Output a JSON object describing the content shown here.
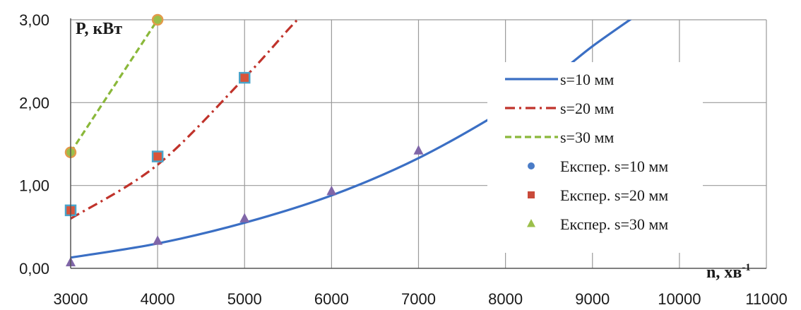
{
  "chart_data": {
    "type": "line",
    "xlabel": "n, хв",
    "xlabel_sup": "-1",
    "ylabel": "P, кВт",
    "xlim": [
      3000,
      11000
    ],
    "ylim": [
      0,
      3
    ],
    "x_ticks": [
      "3000",
      "4000",
      "5000",
      "6000",
      "7000",
      "8000",
      "9000",
      "10000",
      "11000"
    ],
    "y_ticks": [
      "0,00",
      "1,00",
      "2,00",
      "3,00"
    ],
    "grid": true,
    "legend_position": "right",
    "series": [
      {
        "name": "s=10 мм",
        "kind": "line",
        "style": "solid",
        "color": "#3b6fc4",
        "x": [
          3000,
          4000,
          5000,
          6000,
          7000,
          8000,
          8600,
          9000,
          9500
        ],
        "y": [
          0.13,
          0.3,
          0.55,
          0.88,
          1.33,
          1.92,
          2.35,
          2.68,
          3.05
        ]
      },
      {
        "name": "s=20 мм",
        "kind": "line",
        "style": "dashdot",
        "color": "#c0332b",
        "x": [
          3000,
          4000,
          5000,
          5500,
          5700
        ],
        "y": [
          0.6,
          1.25,
          2.3,
          2.88,
          3.1
        ]
      },
      {
        "name": "s=30 мм",
        "kind": "line",
        "style": "dashed",
        "color": "#8ab83a",
        "x": [
          3000,
          3500,
          4000
        ],
        "y": [
          1.4,
          2.2,
          3.0
        ]
      },
      {
        "name": "Експер. s=10 мм",
        "kind": "markers",
        "marker": "circle",
        "color": "#4a7cc7",
        "x": [],
        "y": []
      },
      {
        "name": "Експер. s=20 мм",
        "kind": "markers",
        "marker": "square",
        "color": "#c94a3a",
        "x": [],
        "y": []
      },
      {
        "name": "Експер. s=30 мм",
        "kind": "markers",
        "marker": "triangle",
        "color": "#9bbf4a",
        "x": [],
        "y": []
      }
    ],
    "plotted_points": [
      {
        "marker": "triangle",
        "color": "#8066a8",
        "x": 3000,
        "y": 0.07
      },
      {
        "marker": "triangle",
        "color": "#8066a8",
        "x": 4000,
        "y": 0.33
      },
      {
        "marker": "triangle",
        "color": "#8066a8",
        "x": 5000,
        "y": 0.6
      },
      {
        "marker": "triangle",
        "color": "#8066a8",
        "x": 6000,
        "y": 0.93
      },
      {
        "marker": "triangle",
        "color": "#8066a8",
        "x": 7000,
        "y": 1.42
      },
      {
        "marker": "square",
        "color": "#4aa3c9",
        "inner": "#d9543a",
        "x": 3000,
        "y": 0.7
      },
      {
        "marker": "square",
        "color": "#4aa3c9",
        "inner": "#d9543a",
        "x": 4000,
        "y": 1.35
      },
      {
        "marker": "square",
        "color": "#4aa3c9",
        "inner": "#d9543a",
        "x": 5000,
        "y": 2.3
      },
      {
        "marker": "circle",
        "color": "#e39a4b",
        "inner": "#9bbf4a",
        "x": 3000,
        "y": 1.4
      },
      {
        "marker": "circle",
        "color": "#e39a4b",
        "inner": "#9bbf4a",
        "x": 4000,
        "y": 3.0
      }
    ]
  }
}
